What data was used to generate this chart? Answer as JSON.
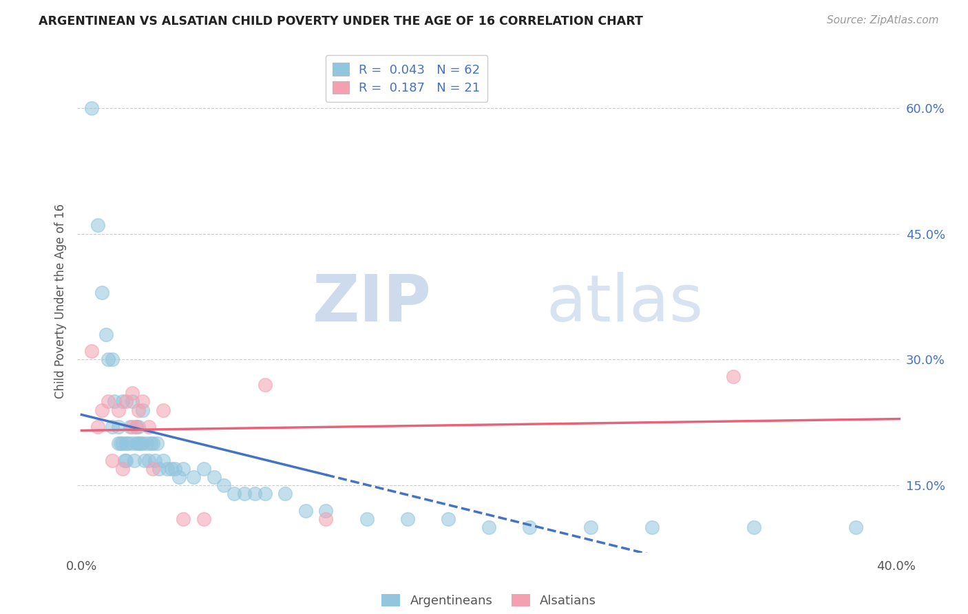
{
  "title": "ARGENTINEAN VS ALSATIAN CHILD POVERTY UNDER THE AGE OF 16 CORRELATION CHART",
  "source": "Source: ZipAtlas.com",
  "ylabel": "Child Poverty Under the Age of 16",
  "ytick_labels": [
    "15.0%",
    "30.0%",
    "45.0%",
    "60.0%"
  ],
  "ytick_values": [
    0.15,
    0.3,
    0.45,
    0.6
  ],
  "xlim": [
    -0.002,
    0.402
  ],
  "ylim": [
    0.07,
    0.67
  ],
  "legend_r1": "R =  0.043",
  "legend_n1": "N = 62",
  "legend_r2": "R =  0.187",
  "legend_n2": "N = 21",
  "blue_color": "#92c5de",
  "pink_color": "#f4a0b0",
  "blue_line_color": "#4472c4",
  "pink_line_color": "#e8637a",
  "argentinean_x": [
    0.005,
    0.008,
    0.01,
    0.012,
    0.013,
    0.015,
    0.015,
    0.016,
    0.018,
    0.018,
    0.019,
    0.02,
    0.02,
    0.021,
    0.022,
    0.022,
    0.023,
    0.024,
    0.025,
    0.025,
    0.026,
    0.027,
    0.027,
    0.028,
    0.028,
    0.029,
    0.03,
    0.03,
    0.031,
    0.032,
    0.033,
    0.034,
    0.035,
    0.036,
    0.037,
    0.038,
    0.04,
    0.042,
    0.044,
    0.046,
    0.048,
    0.05,
    0.055,
    0.06,
    0.065,
    0.07,
    0.075,
    0.08,
    0.085,
    0.09,
    0.1,
    0.11,
    0.12,
    0.14,
    0.16,
    0.18,
    0.2,
    0.22,
    0.25,
    0.28,
    0.33,
    0.38
  ],
  "argentinean_y": [
    0.6,
    0.46,
    0.38,
    0.33,
    0.3,
    0.3,
    0.22,
    0.25,
    0.22,
    0.2,
    0.2,
    0.25,
    0.2,
    0.18,
    0.2,
    0.18,
    0.2,
    0.22,
    0.25,
    0.2,
    0.18,
    0.22,
    0.2,
    0.22,
    0.2,
    0.2,
    0.24,
    0.2,
    0.18,
    0.2,
    0.18,
    0.2,
    0.2,
    0.18,
    0.2,
    0.17,
    0.18,
    0.17,
    0.17,
    0.17,
    0.16,
    0.17,
    0.16,
    0.17,
    0.16,
    0.15,
    0.14,
    0.14,
    0.14,
    0.14,
    0.14,
    0.12,
    0.12,
    0.11,
    0.11,
    0.11,
    0.1,
    0.1,
    0.1,
    0.1,
    0.1,
    0.1
  ],
  "alsatian_x": [
    0.005,
    0.008,
    0.01,
    0.013,
    0.015,
    0.018,
    0.02,
    0.022,
    0.025,
    0.025,
    0.027,
    0.028,
    0.03,
    0.033,
    0.035,
    0.04,
    0.05,
    0.06,
    0.09,
    0.12,
    0.32
  ],
  "alsatian_y": [
    0.31,
    0.22,
    0.24,
    0.25,
    0.18,
    0.24,
    0.17,
    0.25,
    0.26,
    0.22,
    0.22,
    0.24,
    0.25,
    0.22,
    0.17,
    0.24,
    0.11,
    0.11,
    0.27,
    0.11,
    0.28
  ],
  "watermark_zip": "ZIP",
  "watermark_atlas": "atlas",
  "background_color": "#ffffff",
  "grid_color": "#cccccc",
  "bottom_labels": [
    "Argentineans",
    "Alsatians"
  ]
}
